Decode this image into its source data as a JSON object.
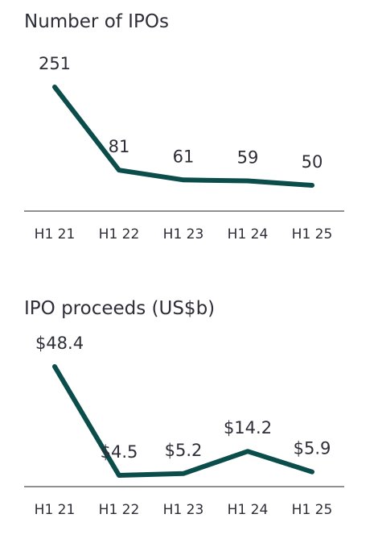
{
  "colors": {
    "line": "#0b4d4a",
    "axis": "#6b6b6b",
    "text": "#2e2e38"
  },
  "chart_data": [
    {
      "type": "line",
      "title": "Number of IPOs",
      "categories": [
        "H1 21",
        "H1 22",
        "H1 23",
        "H1 24",
        "H1 25"
      ],
      "values": [
        251,
        81,
        61,
        59,
        50
      ],
      "data_labels": [
        "251",
        "81",
        "61",
        "59",
        "50"
      ],
      "xlabel": "",
      "ylabel": "",
      "ylim": [
        0,
        300
      ],
      "grid": false,
      "legend": "none"
    },
    {
      "type": "line",
      "title": "IPO proceeds (US$b)",
      "categories": [
        "H1 21",
        "H1 22",
        "H1 23",
        "H1 24",
        "H1 25"
      ],
      "values": [
        48.4,
        4.5,
        5.2,
        14.2,
        5.9
      ],
      "data_labels": [
        "$48.4",
        "$4.5",
        "$5.2",
        "$14.2",
        "$5.9"
      ],
      "xlabel": "",
      "ylabel": "",
      "ylim": [
        0,
        50
      ],
      "grid": false,
      "legend": "none"
    }
  ]
}
